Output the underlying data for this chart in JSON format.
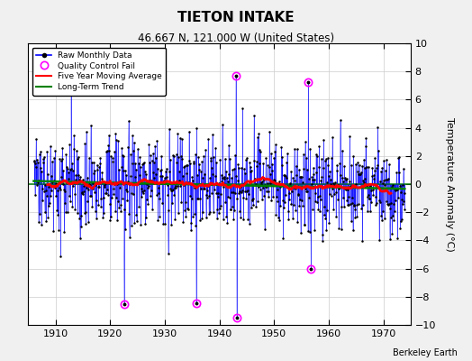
{
  "title": "TIETON INTAKE",
  "subtitle": "46.667 N, 121.000 W (United States)",
  "ylabel": "Temperature Anomaly (°C)",
  "credit": "Berkeley Earth",
  "xlim": [
    1905,
    1975
  ],
  "ylim": [
    -10,
    10
  ],
  "xticks": [
    1910,
    1920,
    1930,
    1940,
    1950,
    1960,
    1970
  ],
  "yticks": [
    -10,
    -8,
    -6,
    -4,
    -2,
    0,
    2,
    4,
    6,
    8,
    10
  ],
  "background_color": "#f0f0f0",
  "plot_background": "#ffffff",
  "raw_line_color": "blue",
  "raw_marker_color": "black",
  "qc_color": "magenta",
  "moving_avg_color": "red",
  "trend_color": "green",
  "zero_line_color": "green",
  "seed": 137
}
